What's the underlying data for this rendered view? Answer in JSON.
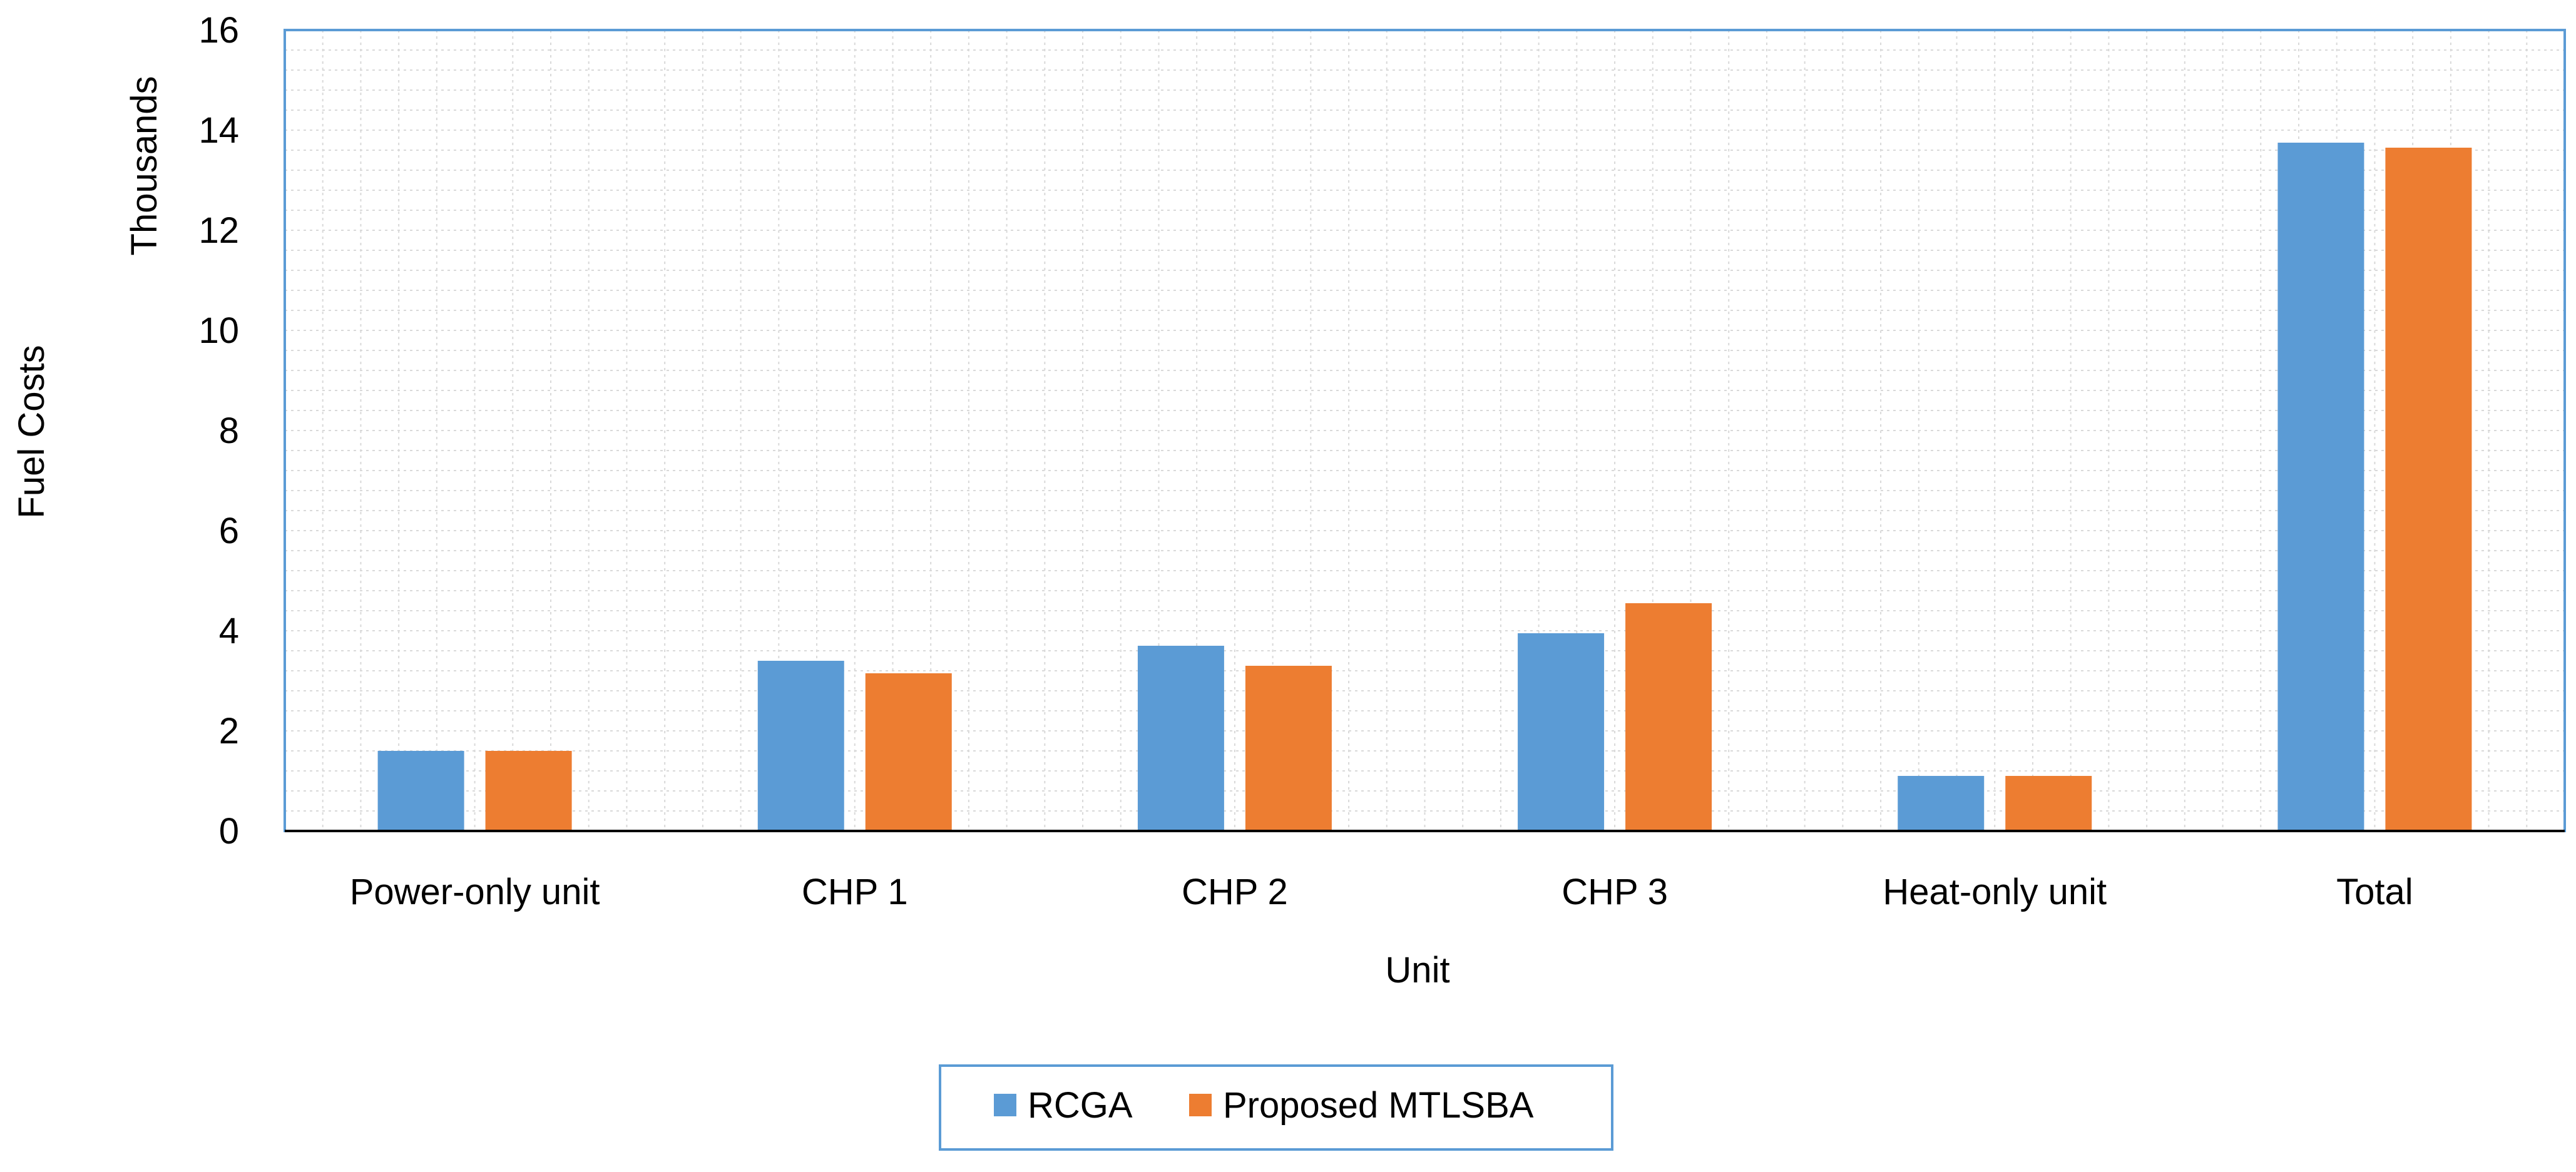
{
  "chart_data": {
    "type": "bar",
    "title": "",
    "xlabel": "Unit",
    "ylabel": "Fuel Costs",
    "y_unit_label": "Thousands",
    "ylim": [
      0,
      16
    ],
    "y_ticks": [
      0,
      2,
      4,
      6,
      8,
      10,
      12,
      14,
      16
    ],
    "grid": true,
    "legend_position": "bottom",
    "categories": [
      "Power-only unit",
      "CHP 1",
      "CHP 2",
      "CHP 3",
      "Heat-only unit",
      "Total"
    ],
    "series": [
      {
        "name": "RCGA",
        "color": "#5B9BD5",
        "values": [
          1.6,
          3.4,
          3.7,
          3.95,
          1.1,
          13.75
        ]
      },
      {
        "name": "Proposed MTLSBA",
        "color": "#ED7D31",
        "values": [
          1.6,
          3.15,
          3.3,
          4.55,
          1.1,
          13.65
        ]
      }
    ]
  },
  "colors": {
    "plot_border": "#5B9BD5",
    "grid": "#D9D9D9",
    "axis": "#000000"
  }
}
